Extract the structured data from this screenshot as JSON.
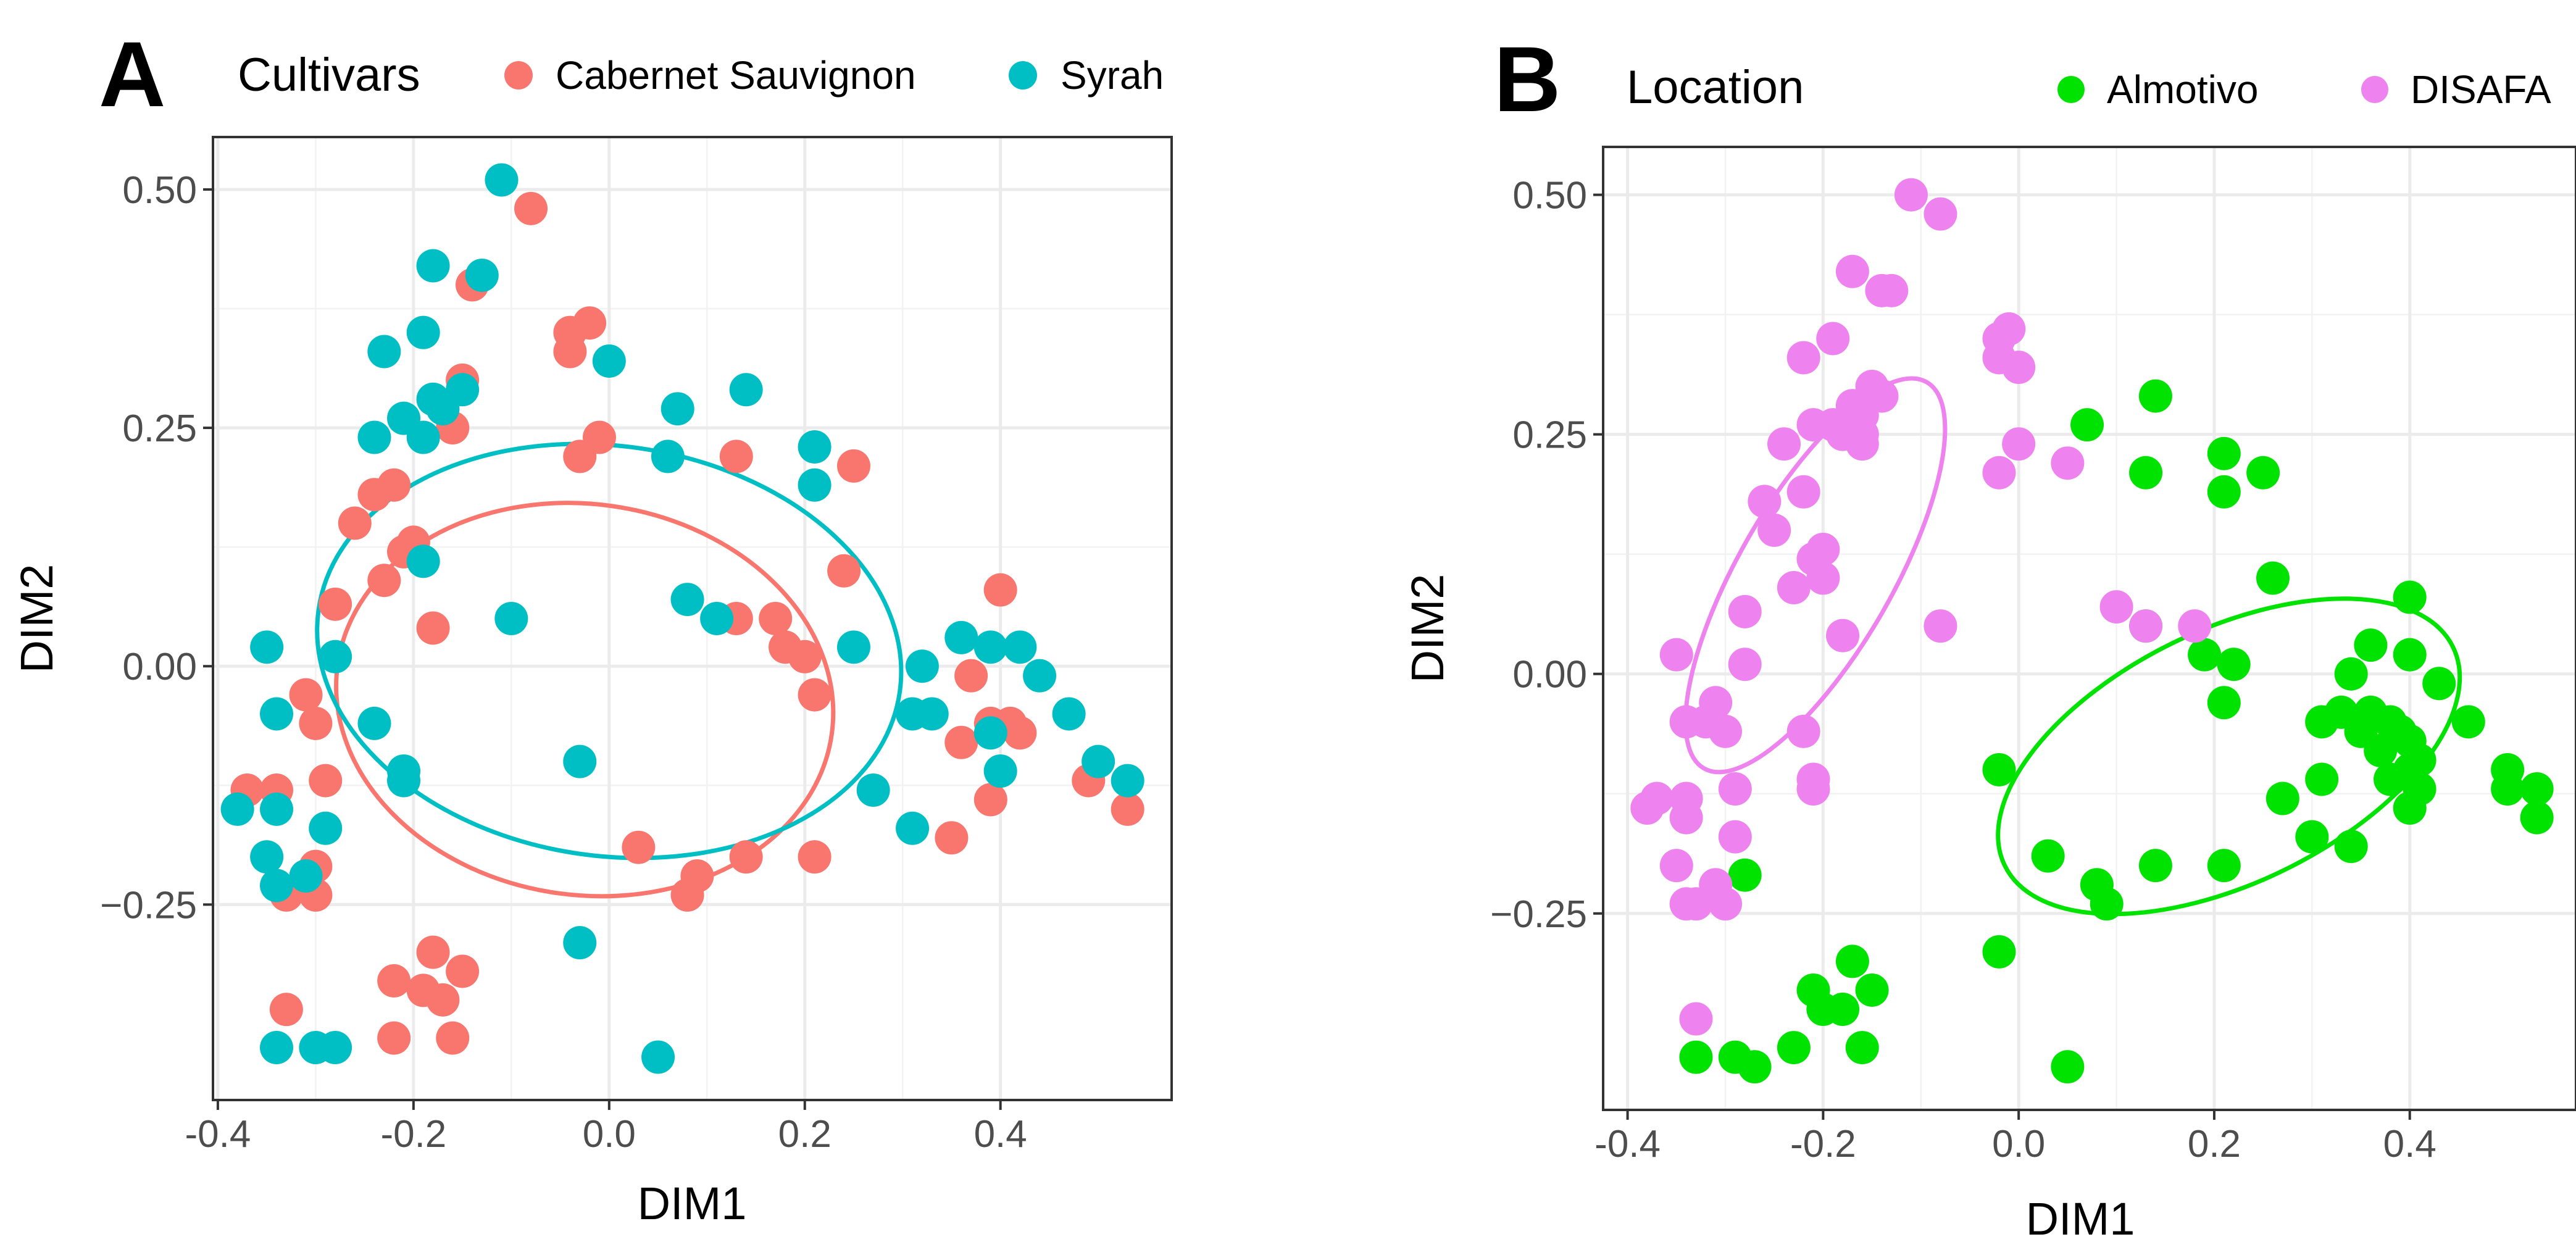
{
  "chart_data": [
    {
      "type": "scatter",
      "panel": "A",
      "legend_title": "Cultivars",
      "legend_position": "top",
      "xlabel": "DIM1",
      "ylabel": "DIM2",
      "xlim": [
        -0.405,
        0.575
      ],
      "ylim": [
        -0.455,
        0.555
      ],
      "x_ticks": [
        -0.4,
        -0.2,
        0.0,
        0.2,
        0.4
      ],
      "x_tick_labels": [
        "-0.4",
        "-0.2",
        "0.0",
        "0.2",
        "0.4"
      ],
      "y_ticks": [
        -0.25,
        0.0,
        0.25,
        0.5
      ],
      "y_tick_labels": [
        "−0.25",
        "0.00",
        "0.25",
        "0.50"
      ],
      "grid": true,
      "series": [
        {
          "name": "Cabernet Sauvignon",
          "color": "#F8766D",
          "ellipse": {
            "cx": -0.025,
            "cy": -0.035,
            "rx": 0.255,
            "ry": 0.205,
            "angle": -8
          },
          "points": [
            [
              -0.08,
              0.48
            ],
            [
              -0.14,
              0.4
            ],
            [
              -0.15,
              0.3
            ],
            [
              -0.16,
              0.25
            ],
            [
              -0.24,
              0.18
            ],
            [
              -0.22,
              0.19
            ],
            [
              -0.26,
              0.15
            ],
            [
              -0.2,
              0.13
            ],
            [
              -0.21,
              0.12
            ],
            [
              -0.23,
              0.09
            ],
            [
              -0.28,
              0.065
            ],
            [
              -0.18,
              0.04
            ],
            [
              -0.04,
              0.35
            ],
            [
              -0.04,
              0.33
            ],
            [
              -0.02,
              0.36
            ],
            [
              -0.01,
              0.24
            ],
            [
              -0.03,
              0.22
            ],
            [
              0.13,
              0.22
            ],
            [
              0.25,
              0.21
            ],
            [
              0.24,
              0.1
            ],
            [
              0.4,
              0.08
            ],
            [
              0.17,
              0.05
            ],
            [
              0.13,
              0.05
            ],
            [
              0.18,
              0.02
            ],
            [
              0.2,
              0.01
            ],
            [
              0.21,
              -0.03
            ],
            [
              -0.31,
              -0.03
            ],
            [
              -0.3,
              -0.06
            ],
            [
              -0.29,
              -0.12
            ],
            [
              -0.37,
              -0.13
            ],
            [
              -0.34,
              -0.13
            ],
            [
              -0.3,
              -0.21
            ],
            [
              -0.3,
              -0.24
            ],
            [
              -0.33,
              -0.24
            ],
            [
              -0.33,
              -0.36
            ],
            [
              0.03,
              -0.19
            ],
            [
              0.09,
              -0.22
            ],
            [
              0.08,
              -0.24
            ],
            [
              0.14,
              -0.2
            ],
            [
              0.21,
              -0.2
            ],
            [
              0.35,
              -0.18
            ],
            [
              0.39,
              -0.06
            ],
            [
              0.41,
              -0.06
            ],
            [
              0.42,
              -0.07
            ],
            [
              0.36,
              -0.08
            ],
            [
              0.39,
              -0.14
            ],
            [
              0.49,
              -0.12
            ],
            [
              0.53,
              -0.15
            ],
            [
              -0.18,
              -0.3
            ],
            [
              -0.22,
              -0.33
            ],
            [
              -0.19,
              -0.34
            ],
            [
              -0.17,
              -0.35
            ],
            [
              -0.15,
              -0.32
            ],
            [
              -0.16,
              -0.39
            ],
            [
              -0.22,
              -0.39
            ],
            [
              0.37,
              -0.01
            ]
          ]
        },
        {
          "name": "Syrah",
          "color": "#00BFC4",
          "ellipse": {
            "cx": 0.0,
            "cy": 0.016,
            "rx": 0.3,
            "ry": 0.215,
            "angle": -8
          },
          "points": [
            [
              -0.11,
              0.51
            ],
            [
              -0.18,
              0.42
            ],
            [
              -0.13,
              0.41
            ],
            [
              -0.19,
              0.35
            ],
            [
              -0.23,
              0.33
            ],
            [
              0.0,
              0.32
            ],
            [
              -0.18,
              0.28
            ],
            [
              -0.15,
              0.29
            ],
            [
              -0.21,
              0.26
            ],
            [
              -0.19,
              0.24
            ],
            [
              -0.24,
              0.24
            ],
            [
              -0.17,
              0.27
            ],
            [
              0.07,
              0.27
            ],
            [
              0.06,
              0.22
            ],
            [
              0.14,
              0.29
            ],
            [
              0.21,
              0.23
            ],
            [
              0.21,
              0.19
            ],
            [
              -0.19,
              0.11
            ],
            [
              -0.1,
              0.05
            ],
            [
              0.08,
              0.07
            ],
            [
              0.11,
              0.05
            ],
            [
              0.25,
              0.02
            ],
            [
              -0.35,
              0.02
            ],
            [
              -0.28,
              0.01
            ],
            [
              -0.34,
              -0.05
            ],
            [
              -0.24,
              -0.06
            ],
            [
              -0.21,
              -0.11
            ],
            [
              -0.21,
              -0.12
            ],
            [
              -0.03,
              -0.1
            ],
            [
              -0.38,
              -0.15
            ],
            [
              -0.34,
              -0.15
            ],
            [
              -0.29,
              -0.17
            ],
            [
              -0.35,
              -0.2
            ],
            [
              -0.31,
              -0.22
            ],
            [
              -0.34,
              -0.23
            ],
            [
              0.32,
              0.0
            ],
            [
              0.31,
              -0.05
            ],
            [
              0.33,
              -0.05
            ],
            [
              0.27,
              -0.13
            ],
            [
              0.31,
              -0.17
            ],
            [
              0.36,
              0.03
            ],
            [
              0.39,
              0.02
            ],
            [
              0.42,
              0.02
            ],
            [
              0.44,
              -0.01
            ],
            [
              0.47,
              -0.05
            ],
            [
              0.39,
              -0.07
            ],
            [
              0.4,
              -0.11
            ],
            [
              0.5,
              -0.1
            ],
            [
              0.53,
              -0.12
            ],
            [
              -0.34,
              -0.4
            ],
            [
              -0.3,
              -0.4
            ],
            [
              -0.28,
              -0.4
            ],
            [
              -0.03,
              -0.29
            ],
            [
              0.05,
              -0.41
            ]
          ]
        }
      ]
    },
    {
      "type": "scatter",
      "panel": "B",
      "legend_title": "Location",
      "legend_position": "top",
      "xlabel": "DIM1",
      "ylabel": "DIM2",
      "xlim": [
        -0.425,
        0.57
      ],
      "ylim": [
        -0.455,
        0.55
      ],
      "x_ticks": [
        -0.4,
        -0.2,
        0.0,
        0.2,
        0.4
      ],
      "x_tick_labels": [
        "-0.4",
        "-0.2",
        "0.0",
        "0.2",
        "0.4"
      ],
      "y_ticks": [
        -0.25,
        0.0,
        0.25,
        0.5
      ],
      "y_tick_labels": [
        "−0.25",
        "0.00",
        "0.25",
        "0.50"
      ],
      "grid": true,
      "series": [
        {
          "name": "Almotivo",
          "color": "#00E300",
          "ellipse": {
            "cx": 0.215,
            "cy": -0.086,
            "rx": 0.255,
            "ry": 0.132,
            "angle": 26
          },
          "points": [
            [
              0.07,
              0.26
            ],
            [
              0.14,
              0.29
            ],
            [
              0.13,
              0.21
            ],
            [
              0.21,
              0.23
            ],
            [
              0.21,
              0.19
            ],
            [
              0.25,
              0.21
            ],
            [
              0.26,
              0.1
            ],
            [
              0.13,
              0.05
            ],
            [
              0.19,
              0.02
            ],
            [
              0.22,
              0.01
            ],
            [
              0.21,
              -0.03
            ],
            [
              0.34,
              0.0
            ],
            [
              0.36,
              0.03
            ],
            [
              0.4,
              0.08
            ],
            [
              0.4,
              0.02
            ],
            [
              0.43,
              -0.01
            ],
            [
              0.31,
              -0.05
            ],
            [
              0.33,
              -0.04
            ],
            [
              0.35,
              -0.06
            ],
            [
              0.36,
              -0.04
            ],
            [
              0.38,
              -0.05
            ],
            [
              0.39,
              -0.06
            ],
            [
              0.4,
              -0.07
            ],
            [
              0.41,
              -0.09
            ],
            [
              0.4,
              -0.1
            ],
            [
              0.38,
              -0.11
            ],
            [
              0.37,
              -0.08
            ],
            [
              0.46,
              -0.05
            ],
            [
              0.5,
              -0.1
            ],
            [
              0.5,
              -0.12
            ],
            [
              0.53,
              -0.12
            ],
            [
              0.53,
              -0.15
            ],
            [
              0.41,
              -0.12
            ],
            [
              0.31,
              -0.11
            ],
            [
              0.27,
              -0.13
            ],
            [
              0.3,
              -0.17
            ],
            [
              0.34,
              -0.18
            ],
            [
              0.4,
              -0.14
            ],
            [
              -0.02,
              -0.1
            ],
            [
              0.03,
              -0.19
            ],
            [
              0.08,
              -0.22
            ],
            [
              0.09,
              -0.24
            ],
            [
              0.14,
              -0.2
            ],
            [
              0.21,
              -0.2
            ],
            [
              -0.02,
              -0.29
            ],
            [
              -0.28,
              -0.21
            ],
            [
              -0.33,
              -0.4
            ],
            [
              -0.29,
              -0.4
            ],
            [
              -0.27,
              -0.41
            ],
            [
              -0.21,
              -0.33
            ],
            [
              -0.2,
              -0.35
            ],
            [
              -0.18,
              -0.35
            ],
            [
              -0.17,
              -0.3
            ],
            [
              -0.15,
              -0.33
            ],
            [
              -0.16,
              -0.39
            ],
            [
              -0.23,
              -0.39
            ],
            [
              0.05,
              -0.41
            ]
          ]
        },
        {
          "name": "DISAFA",
          "color": "#EE82EE",
          "ellipse": {
            "cx": -0.208,
            "cy": 0.103,
            "rx": 0.228,
            "ry": 0.08,
            "angle": 60
          },
          "points": [
            [
              -0.11,
              0.5
            ],
            [
              -0.08,
              0.48
            ],
            [
              -0.17,
              0.42
            ],
            [
              -0.14,
              0.4
            ],
            [
              -0.13,
              0.4
            ],
            [
              -0.19,
              0.35
            ],
            [
              -0.22,
              0.33
            ],
            [
              -0.02,
              0.33
            ],
            [
              -0.01,
              0.36
            ],
            [
              0.0,
              0.32
            ],
            [
              -0.02,
              0.35
            ],
            [
              -0.17,
              0.28
            ],
            [
              -0.16,
              0.27
            ],
            [
              -0.15,
              0.3
            ],
            [
              -0.19,
              0.26
            ],
            [
              -0.18,
              0.25
            ],
            [
              -0.21,
              0.26
            ],
            [
              -0.16,
              0.24
            ],
            [
              -0.24,
              0.24
            ],
            [
              -0.16,
              0.25
            ],
            [
              -0.14,
              0.29
            ],
            [
              0.0,
              0.24
            ],
            [
              -0.02,
              0.21
            ],
            [
              0.05,
              0.22
            ],
            [
              -0.26,
              0.18
            ],
            [
              -0.22,
              0.19
            ],
            [
              -0.25,
              0.15
            ],
            [
              -0.2,
              0.13
            ],
            [
              -0.21,
              0.12
            ],
            [
              -0.23,
              0.09
            ],
            [
              -0.2,
              0.1
            ],
            [
              -0.28,
              0.065
            ],
            [
              -0.18,
              0.04
            ],
            [
              -0.08,
              0.05
            ],
            [
              0.1,
              0.07
            ],
            [
              0.13,
              0.05
            ],
            [
              0.18,
              0.05
            ],
            [
              -0.35,
              0.02
            ],
            [
              -0.28,
              0.01
            ],
            [
              -0.31,
              -0.03
            ],
            [
              -0.34,
              -0.05
            ],
            [
              -0.32,
              -0.05
            ],
            [
              -0.3,
              -0.06
            ],
            [
              -0.22,
              -0.06
            ],
            [
              -0.21,
              -0.11
            ],
            [
              -0.21,
              -0.12
            ],
            [
              -0.29,
              -0.12
            ],
            [
              -0.38,
              -0.14
            ],
            [
              -0.37,
              -0.13
            ],
            [
              -0.34,
              -0.13
            ],
            [
              -0.34,
              -0.15
            ],
            [
              -0.29,
              -0.17
            ],
            [
              -0.35,
              -0.2
            ],
            [
              -0.31,
              -0.22
            ],
            [
              -0.3,
              -0.24
            ],
            [
              -0.33,
              -0.24
            ],
            [
              -0.34,
              -0.24
            ],
            [
              -0.33,
              -0.36
            ]
          ]
        }
      ]
    }
  ]
}
